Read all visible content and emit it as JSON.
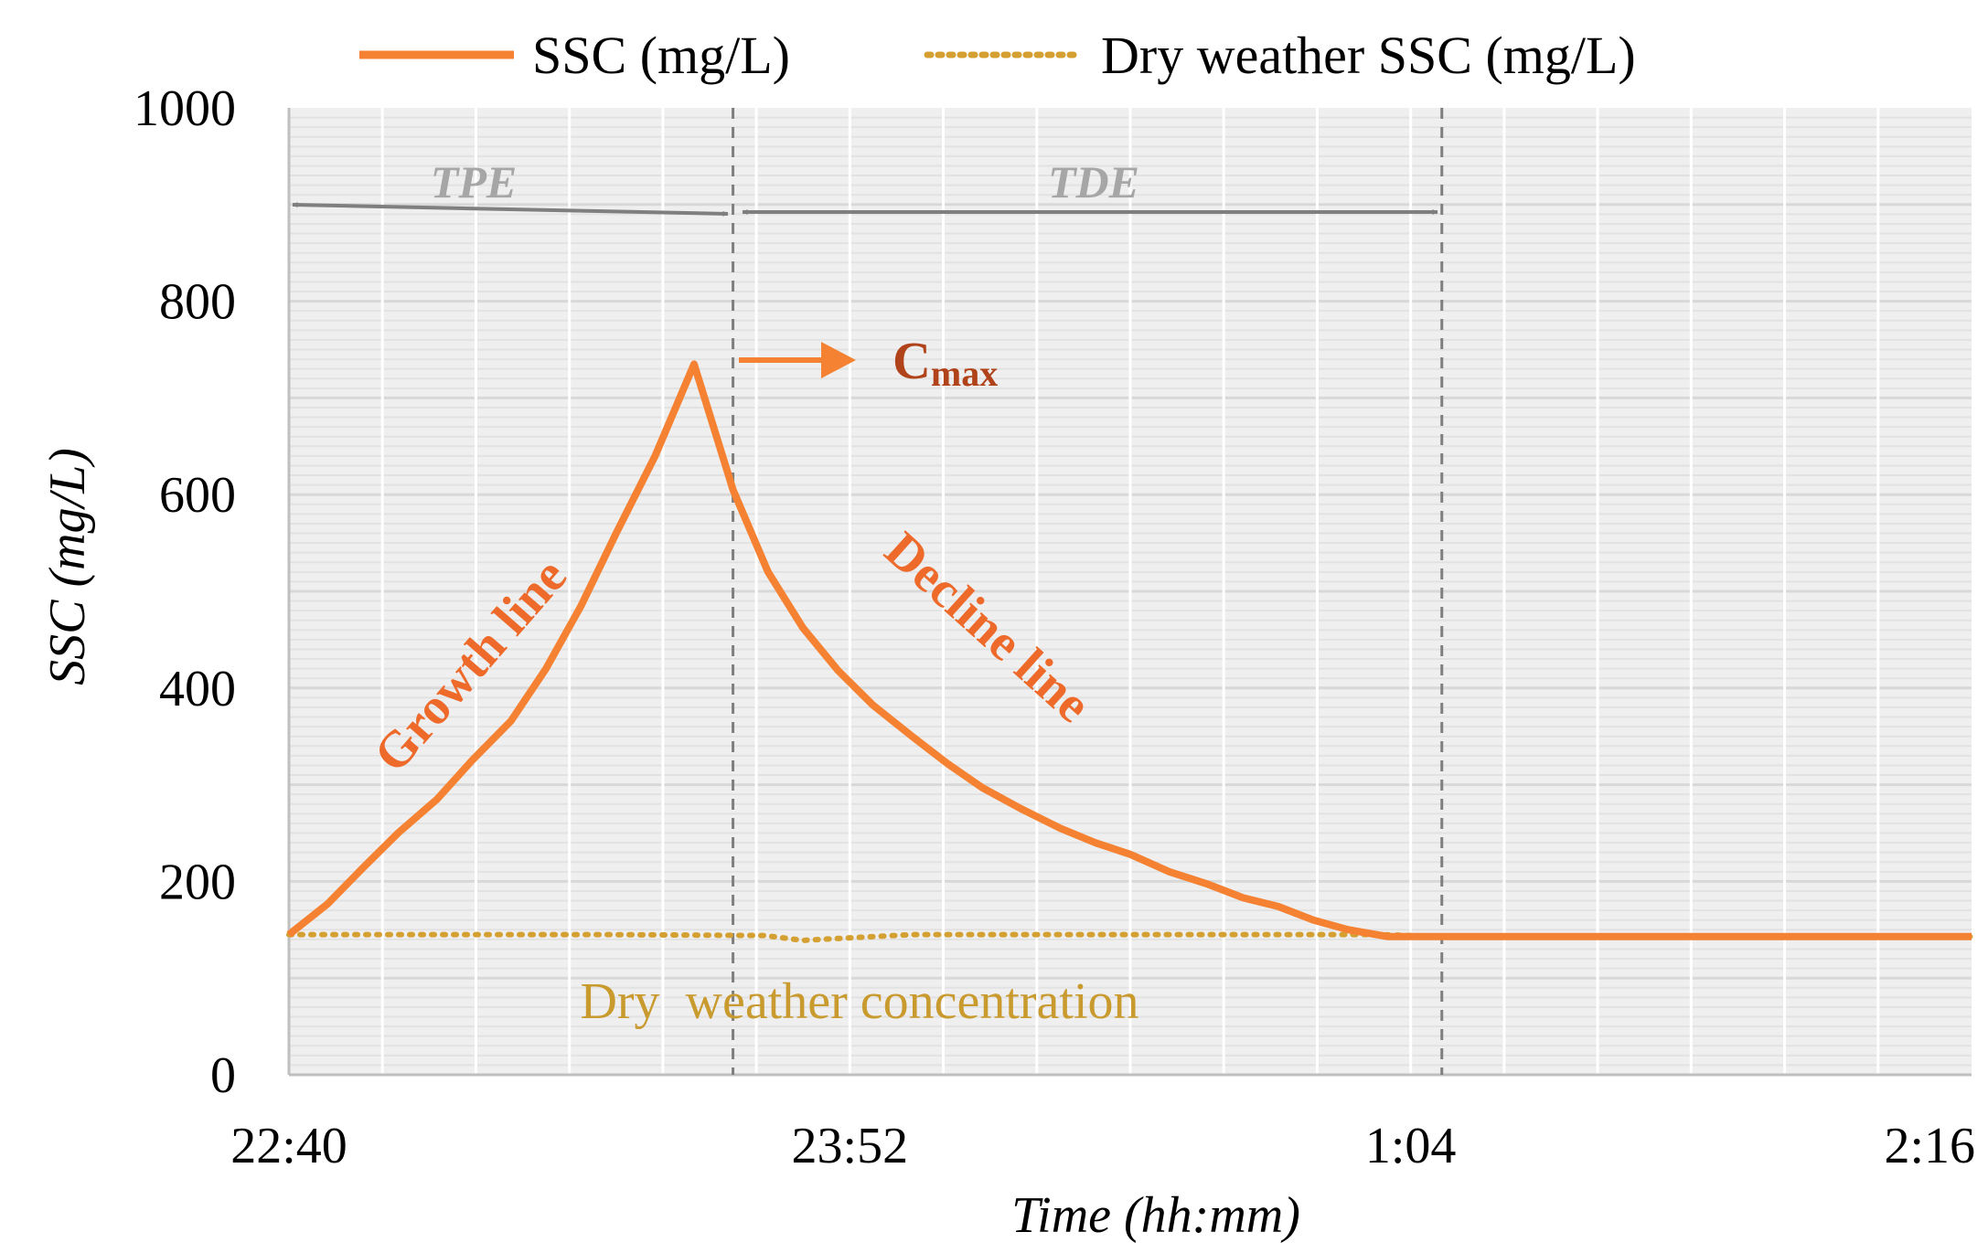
{
  "chart_data": {
    "type": "line",
    "title": "",
    "xlabel": "Time (hh:mm)",
    "ylabel": "SSC (mg/L)",
    "ylim": [
      0,
      1000
    ],
    "yticks": [
      0,
      200,
      400,
      600,
      800,
      1000
    ],
    "x_range_minutes": [
      0,
      216
    ],
    "xticks": [
      {
        "minute": 0,
        "label": "22:40"
      },
      {
        "minute": 72,
        "label": "23:52"
      },
      {
        "minute": 144,
        "label": "1:04"
      },
      {
        "minute": 216,
        "label": "2:16"
      }
    ],
    "grid": "light horizontal and vertical",
    "legend_position": "top",
    "series": [
      {
        "name": "SSC (mg/L)",
        "color": "#f58232",
        "style": "solid",
        "x": [
          0,
          5,
          9.5,
          14,
          19,
          23.5,
          28.5,
          33,
          37.5,
          42,
          47,
          52,
          57,
          61.5,
          66,
          70.5,
          75,
          80,
          84.5,
          89,
          94,
          99,
          103.5,
          108,
          113,
          118,
          122.5,
          127,
          131.5,
          136,
          141,
          148,
          216
        ],
        "values": [
          145,
          177,
          214,
          250,
          285,
          325,
          366,
          420,
          485,
          560,
          640,
          735,
          605,
          520,
          462,
          418,
          382,
          350,
          322,
          297,
          275,
          255,
          240,
          228,
          210,
          197,
          183,
          174,
          160,
          150,
          143,
          143,
          143
        ]
      },
      {
        "name": "Dry weather SSC (mg/L)",
        "color": "#d4a031",
        "style": "dotted",
        "x": [
          0,
          40,
          61,
          66,
          80,
          100,
          140,
          148,
          216
        ],
        "values": [
          145,
          145,
          144,
          139,
          145,
          145,
          145,
          143,
          143
        ]
      }
    ],
    "vlines_minutes": [
      57,
      148
    ],
    "annotations": {
      "tpe": "TPE",
      "tde": "TDE",
      "cmax_main": "C",
      "cmax_sub": "max",
      "growth": "Growth  line",
      "decline": "Decline line",
      "dry": "Dry  weather concentration"
    }
  }
}
